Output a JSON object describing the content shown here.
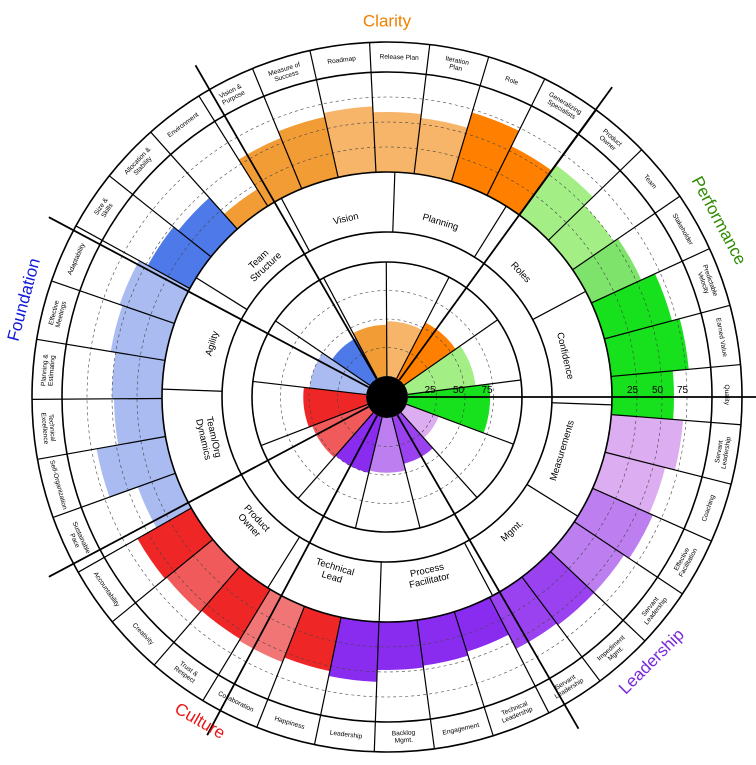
{
  "colors": {
    "clarity_mid": "#f29c36",
    "clarity_light": "#f7b56a",
    "clarity_dark": "#ff8000",
    "performance_light": "#a3ef86",
    "performance_mid": "#7de36a",
    "performance_dark": "#17e11c",
    "leadership_light": "#ddadf2",
    "leadership_mid": "#bd7ff0",
    "leadership_dark": "#9a42ef",
    "leadership_deep": "#8a2cf0",
    "culture_mid": "#f05a5a",
    "culture_dark": "#ef2626",
    "culture_light": "#f27575",
    "foundation_light": "#a9bbf1",
    "foundation_dark": "#4d79e9"
  },
  "sections": [
    {
      "name": "Clarity",
      "color": "#f08000"
    },
    {
      "name": "Performance",
      "color": "#2e8b00"
    },
    {
      "name": "Leadership",
      "color": "#7a28d8"
    },
    {
      "name": "Culture",
      "color": "#e81414"
    },
    {
      "name": "Foundation",
      "color": "#1018d8"
    }
  ],
  "scale_ticks": [
    "25",
    "50",
    "75"
  ],
  "middle_segments": [
    {
      "label": "Vision",
      "color": "#f29c36",
      "value": 0
    },
    {
      "label": "Planning",
      "color": "#f7b56a",
      "value": 0
    },
    {
      "label": "Roles",
      "color": "#ff8000",
      "value": 0
    },
    {
      "label": "Confidence",
      "color": "#a3ef86",
      "value": 0
    },
    {
      "label": "Measurements",
      "color": "#17e11c",
      "value": 0
    },
    {
      "label": "Mgmt.",
      "color": "#ddadf2",
      "value": 0
    },
    {
      "label": "Process Facilitator",
      "color": "#9a42ef",
      "value": 0
    },
    {
      "label": "Technical Lead",
      "color": "#bd7ff0",
      "value": 0
    },
    {
      "label": "Product Owner",
      "color": "#8a2cf0",
      "value": 0
    },
    {
      "label": "Team/Org Dynamics",
      "color": "#f05a5a",
      "value": 0
    },
    {
      "label": "Agility",
      "color": "#a9bbf1",
      "value": 0
    },
    {
      "label": "Team Structure",
      "color": "#4d79e9",
      "value": 0
    }
  ],
  "inner_segments": [
    {
      "color": "#f29c36",
      "value": 45
    },
    {
      "color": "#f7b56a",
      "value": 48
    },
    {
      "color": "#ff8000",
      "value": 55
    },
    {
      "color": "#a3ef86",
      "value": 60
    },
    {
      "color": "#17e11c",
      "value": 72
    },
    {
      "color": "#ddadf2",
      "value": 30
    },
    {
      "color": "#9a42ef",
      "value": 42
    },
    {
      "color": "#bd7ff0",
      "value": 48
    },
    {
      "color": "#8a2cf0",
      "value": 50
    },
    {
      "color": "#f05a5a",
      "value": 52
    },
    {
      "color": "#ef2626",
      "value": 55
    },
    {
      "color": "#a9bbf1",
      "value": 50
    },
    {
      "color": "#4d79e9",
      "value": 40
    }
  ],
  "outer_segments": [
    {
      "label": "Vision & Purpose",
      "color": "#f29c36",
      "value": 55
    },
    {
      "label": "Measure of Success",
      "color": "#f29c36",
      "value": 62
    },
    {
      "label": "Roadmap",
      "color": "#f7b56a",
      "value": 66
    },
    {
      "label": "Release Plan",
      "color": "#f7b56a",
      "value": 60
    },
    {
      "label": "Iteration Plan",
      "color": "#f7b56a",
      "value": 56
    },
    {
      "label": "Role",
      "color": "#ff8000",
      "value": 72
    },
    {
      "label": "Generalizing Specialists",
      "color": "#ff8000",
      "value": 55
    },
    {
      "label": "Product Owner",
      "color": "#a3ef86",
      "value": 62
    },
    {
      "label": "Team",
      "color": "#a3ef86",
      "value": 50
    },
    {
      "label": "Stakeholder",
      "color": "#7de36a",
      "value": 55
    },
    {
      "label": "Predictable Velocity",
      "color": "#17e11c",
      "value": 70
    },
    {
      "label": "Earned Value",
      "color": "#17e11c",
      "value": 78
    },
    {
      "label": "Quality",
      "color": "#17e11c",
      "value": 62
    },
    {
      "label": "Servant Leadership",
      "color": "#ddadf2",
      "value": 72
    },
    {
      "label": "Coaching",
      "color": "#ddadf2",
      "value": 62
    },
    {
      "label": "Effective Facilitation",
      "color": "#bd7ff0",
      "value": 66
    },
    {
      "label": "Servant Leadership",
      "color": "#bd7ff0",
      "value": 60
    },
    {
      "label": "Impediment Mgmt.",
      "color": "#9a42ef",
      "value": 60
    },
    {
      "label": "Servant Leadership",
      "color": "#9a42ef",
      "value": 58
    },
    {
      "label": "Technical Leadership",
      "color": "#8a2cf0",
      "value": 42
    },
    {
      "label": "Engagement",
      "color": "#8a2cf0",
      "value": 46
    },
    {
      "label": "Backlog Mgmt.",
      "color": "#8a2cf0",
      "value": 48
    },
    {
      "label": "Leadership",
      "color": "#8a2cf0",
      "value": 60
    },
    {
      "label": "Happiness",
      "color": "#ef2626",
      "value": 55
    },
    {
      "label": "Collaboration",
      "color": "#f27575",
      "value": 60
    },
    {
      "label": "Trust & Respect",
      "color": "#ef2626",
      "value": 58
    },
    {
      "label": "Creativity",
      "color": "#f05a5a",
      "value": 60
    },
    {
      "label": "Accountability",
      "color": "#ef2626",
      "value": 62
    },
    {
      "label": "Sustainable Pace",
      "color": "#a9bbf1",
      "value": 40
    },
    {
      "label": "Self-Organization",
      "color": "#a9bbf1",
      "value": 70
    },
    {
      "label": "Technical Excellence",
      "color": "#a9bbf1",
      "value": 48
    },
    {
      "label": "Planning & Estimating",
      "color": "#a9bbf1",
      "value": 50
    },
    {
      "label": "Effective Meetings",
      "color": "#a9bbf1",
      "value": 55
    },
    {
      "label": "Adaptability",
      "color": "#a9bbf1",
      "value": 58
    },
    {
      "label": "Size & Skills",
      "color": "#4d79e9",
      "value": 48
    },
    {
      "label": "Allocation & Stability",
      "color": "#4d79e9",
      "value": 42
    },
    {
      "label": "Environment",
      "color": "#f29c36",
      "value": 20
    }
  ]
}
